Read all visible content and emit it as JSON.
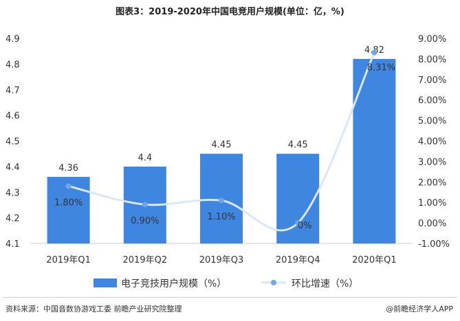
{
  "title": "图表3：2019-2020年中国电竞用户规模(单位：亿，%)",
  "source": "资料来源：中国音数协游戏工委 前瞻产业研究院整理",
  "brand": "@前瞻经济学人APP",
  "colors": {
    "bar": "#3f86e0",
    "line": "#dbe6f8",
    "marker": "#6ea6ea"
  },
  "chart_data": {
    "type": "bar",
    "categories": [
      "2019年Q1",
      "2019年Q2",
      "2019年Q3",
      "2019年Q4",
      "2020年Q1"
    ],
    "series": [
      {
        "name": "电子竞技用户规模（%）",
        "type": "bar",
        "axis": "left",
        "values": [
          4.36,
          4.4,
          4.45,
          4.45,
          4.82
        ],
        "labels": [
          "4.36",
          "4.4",
          "4.45",
          "4.45",
          "4.82"
        ]
      },
      {
        "name": "环比增速（%）",
        "type": "line",
        "axis": "right",
        "values": [
          1.8,
          0.9,
          1.1,
          0.0,
          8.31
        ],
        "labels": [
          "1.80%",
          "0.90%",
          "1.10%",
          "0%",
          "8.31%"
        ]
      }
    ],
    "y_left": {
      "min": 4.1,
      "max": 4.9,
      "ticks": [
        "4.1",
        "4.2",
        "4.3",
        "4.4",
        "4.5",
        "4.6",
        "4.7",
        "4.8",
        "4.9"
      ]
    },
    "y_right": {
      "min": -1,
      "max": 9,
      "ticks": [
        "-1.00%",
        "0.00%",
        "1.00%",
        "2.00%",
        "3.00%",
        "4.00%",
        "5.00%",
        "6.00%",
        "7.00%",
        "8.00%",
        "9.00%"
      ]
    },
    "grid": false,
    "legend_position": "bottom"
  }
}
